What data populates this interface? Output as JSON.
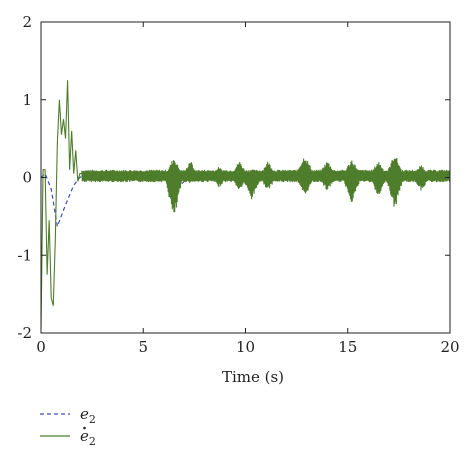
{
  "chart_data": {
    "type": "line",
    "xlabel": "Time (s)",
    "ylabel": "",
    "xlim": [
      0,
      20
    ],
    "ylim": [
      -2,
      2
    ],
    "xticks": [
      "0",
      "5",
      "10",
      "15",
      "20"
    ],
    "yticks": [
      "2",
      "1",
      "0",
      "-1",
      "-2"
    ],
    "grid": false,
    "legend_position": "below",
    "series": [
      {
        "name": "e",
        "name_subscript": "2",
        "name_dot": false,
        "style": "dashed",
        "color": "#3a4fb0",
        "x": [
          0,
          0.2,
          0.5,
          0.8,
          1.2,
          1.6,
          1.9,
          2.2,
          5,
          6.2,
          6.6,
          7.0,
          7.5,
          8,
          20
        ],
        "y": [
          0,
          0.05,
          -0.15,
          -0.63,
          -0.35,
          -0.1,
          0.0,
          0.05,
          0.05,
          -0.05,
          -0.15,
          -0.05,
          0.05,
          0.05,
          0.05
        ]
      },
      {
        "name": "e",
        "name_subscript": "2",
        "name_dot": true,
        "style": "solid",
        "color": "#4e7d2c",
        "x": [
          0,
          0.1,
          0.2,
          0.3,
          0.4,
          0.5,
          0.6,
          0.7,
          0.8,
          0.9,
          1.0,
          1.1,
          1.2,
          1.3,
          1.4,
          1.5,
          1.6,
          1.7,
          1.8,
          1.9,
          2.0,
          6.0,
          6.3,
          6.5,
          6.7,
          7.0,
          7.5,
          20
        ],
        "y": [
          -1.95,
          0.1,
          0.1,
          -1.25,
          -0.55,
          -1.55,
          -1.65,
          -0.8,
          0.45,
          1.0,
          0.55,
          0.75,
          0.5,
          1.25,
          0.1,
          0.6,
          0.05,
          0.35,
          -0.05,
          0.05,
          0.05,
          -0.1,
          -0.55,
          -0.3,
          0.2,
          0.1,
          0.05,
          0.05
        ]
      }
    ],
    "oscillation": {
      "series_index": 1,
      "x_start": 2.0,
      "x_end": 20,
      "center": 0.02,
      "base_amplitude": 0.08,
      "bumps": [
        {
          "x": 6.5,
          "half_width": 0.45,
          "upper": 0.25,
          "lower": -0.6
        },
        {
          "x": 7.3,
          "half_width": 0.35,
          "upper": 0.22,
          "lower": -0.1
        },
        {
          "x": 8.7,
          "half_width": 0.5,
          "upper": 0.12,
          "lower": -0.15
        },
        {
          "x": 9.7,
          "half_width": 0.45,
          "upper": 0.2,
          "lower": -0.2
        },
        {
          "x": 10.3,
          "half_width": 0.5,
          "upper": 0.1,
          "lower": -0.32
        },
        {
          "x": 11.1,
          "half_width": 0.45,
          "upper": 0.2,
          "lower": -0.2
        },
        {
          "x": 12.9,
          "half_width": 0.5,
          "upper": 0.28,
          "lower": -0.28
        },
        {
          "x": 14.0,
          "half_width": 0.5,
          "upper": 0.2,
          "lower": -0.2
        },
        {
          "x": 15.2,
          "half_width": 0.5,
          "upper": 0.22,
          "lower": -0.35
        },
        {
          "x": 16.5,
          "half_width": 0.45,
          "upper": 0.2,
          "lower": -0.3
        },
        {
          "x": 17.3,
          "half_width": 0.45,
          "upper": 0.3,
          "lower": -0.45
        },
        {
          "x": 18.6,
          "half_width": 0.45,
          "upper": 0.15,
          "lower": -0.2
        }
      ]
    }
  }
}
